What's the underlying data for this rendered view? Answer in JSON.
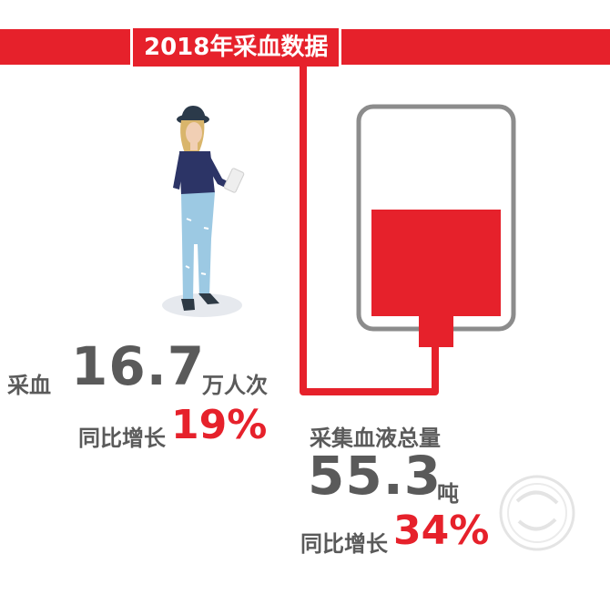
{
  "title": "2018年采血数据",
  "donations": {
    "label": "采血",
    "value": "16.7",
    "unit": "万人次",
    "growth_label": "同比增长",
    "growth_value": "19%"
  },
  "volume": {
    "label": "采集血液总量",
    "value": "55.3",
    "unit": "吨",
    "growth_label": "同比增长",
    "growth_value": "34%"
  },
  "colors": {
    "accent": "#e6212b",
    "text": "#5a5a5a",
    "bag_outline": "#8c8c8c"
  },
  "blood_bag_fill_level": 0.52
}
